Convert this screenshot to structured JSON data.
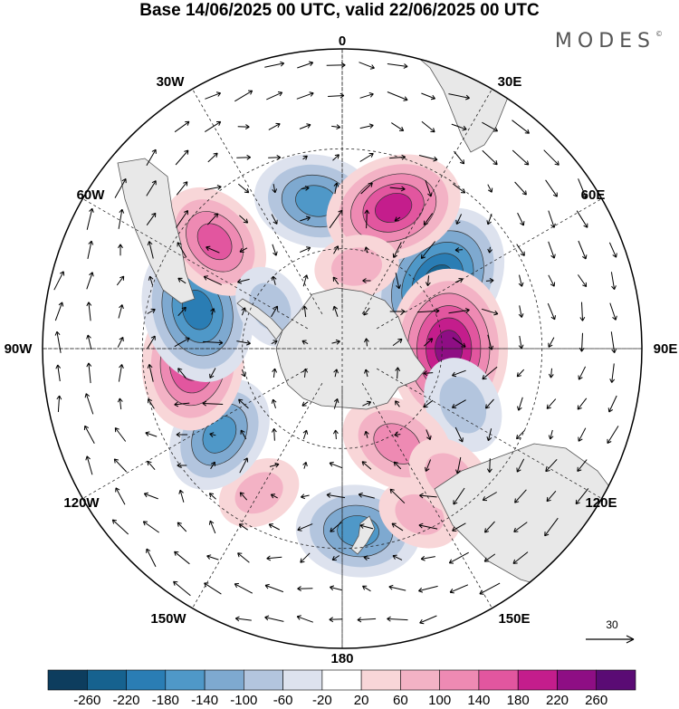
{
  "title": "Base 14/06/2025 00 UTC, valid 22/06/2025 00 UTC",
  "brand": "MODES",
  "brand_mark": "©",
  "longitude_labels": [
    "0",
    "30E",
    "60E",
    "90E",
    "120E",
    "150E",
    "180",
    "150W",
    "120W",
    "90W",
    "60W",
    "30W"
  ],
  "colorbar": {
    "ticks": [
      "-260",
      "-220",
      "-180",
      "-140",
      "-100",
      "-60",
      "-20",
      "20",
      "60",
      "100",
      "140",
      "180",
      "220",
      "260"
    ],
    "colors": [
      "#0d3d5e",
      "#16628f",
      "#2a7db4",
      "#4f98c8",
      "#7ea9d0",
      "#b3c5de",
      "#dde2ee",
      "#ffffff",
      "#f8d6d8",
      "#f3b2c5",
      "#ee8ab3",
      "#e2569f",
      "#c41d8c",
      "#8e0e84",
      "#5a0b74"
    ]
  },
  "vector_reference": {
    "value": "30"
  },
  "anomalies": [
    {
      "lon": 55,
      "lat": -55,
      "value": -230
    },
    {
      "lon": 90,
      "lat": -58,
      "value": 230
    },
    {
      "lon": 115,
      "lat": -50,
      "value": -90
    },
    {
      "lon": 150,
      "lat": -57,
      "value": 130
    },
    {
      "lon": 175,
      "lat": -35,
      "value": -150
    },
    {
      "lon": 155,
      "lat": -35,
      "value": 60
    },
    {
      "lon": 140,
      "lat": -40,
      "value": 70
    },
    {
      "lon": -150,
      "lat": -40,
      "value": 60
    },
    {
      "lon": -125,
      "lat": -45,
      "value": -140
    },
    {
      "lon": -95,
      "lat": -45,
      "value": 180
    },
    {
      "lon": -75,
      "lat": -45,
      "value": -200
    },
    {
      "lon": -50,
      "lat": -40,
      "value": 140
    },
    {
      "lon": -10,
      "lat": -45,
      "value": -150
    },
    {
      "lon": 20,
      "lat": -45,
      "value": 180
    },
    {
      "lon": 10,
      "lat": -65,
      "value": 60
    },
    {
      "lon": -60,
      "lat": -65,
      "value": -60
    }
  ]
}
